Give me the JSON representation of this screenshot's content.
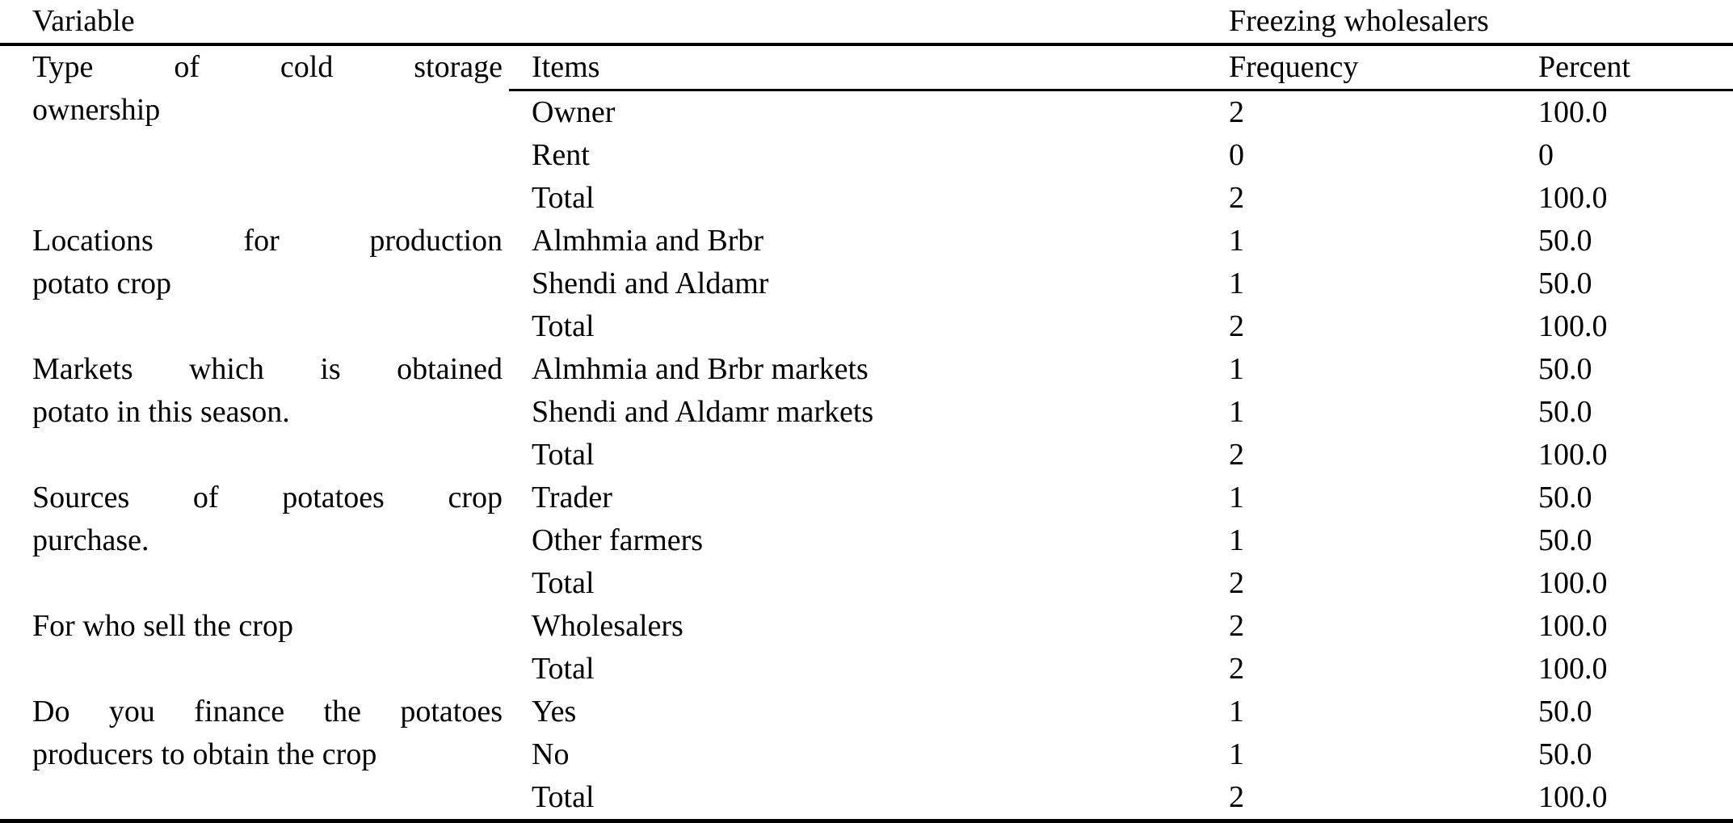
{
  "page": {
    "background_color": "#ffffff",
    "text_color": "#000000"
  },
  "table": {
    "top_header": {
      "variable": "Variable",
      "group": "Freezing wholesalers"
    },
    "columns": {
      "items": "Items",
      "frequency": "Frequency",
      "percent": "Percent"
    },
    "sections": [
      {
        "variable": "Type of cold storage ownership",
        "variable_lines": [
          "Type of cold storage",
          "ownership"
        ],
        "rows": [
          {
            "item": "Owner",
            "frequency": "2",
            "percent": "100.0"
          },
          {
            "item": "Rent",
            "frequency": "0",
            "percent": "0"
          },
          {
            "item": "Total",
            "frequency": "2",
            "percent": "100.0"
          }
        ]
      },
      {
        "variable": "Locations for production potato crop",
        "variable_lines": [
          "Locations for production",
          "potato crop"
        ],
        "rows": [
          {
            "item": "Almhmia and Brbr",
            "frequency": "1",
            "percent": "50.0"
          },
          {
            "item": "Shendi and Aldamr",
            "frequency": "1",
            "percent": "50.0"
          },
          {
            "item": "Total",
            "frequency": "2",
            "percent": "100.0"
          }
        ]
      },
      {
        "variable": "Markets which is obtained potato in this season.",
        "variable_lines": [
          "Markets which is obtained",
          "potato in this season."
        ],
        "rows": [
          {
            "item": "Almhmia and Brbr markets",
            "frequency": "1",
            "percent": "50.0"
          },
          {
            "item": "Shendi and Aldamr markets",
            "frequency": "1",
            "percent": "50.0"
          },
          {
            "item": "Total",
            "frequency": "2",
            "percent": "100.0"
          }
        ]
      },
      {
        "variable": "Sources of potatoes crop purchase.",
        "variable_lines": [
          "Sources of potatoes crop",
          "purchase."
        ],
        "rows": [
          {
            "item": "Trader",
            "frequency": "1",
            "percent": "50.0"
          },
          {
            "item": "Other farmers",
            "frequency": "1",
            "percent": "50.0"
          },
          {
            "item": "Total",
            "frequency": "2",
            "percent": "100.0"
          }
        ]
      },
      {
        "variable": "For who sell the crop",
        "variable_lines": [
          "For who sell the crop"
        ],
        "rows": [
          {
            "item": "Wholesalers",
            "frequency": "2",
            "percent": "100.0"
          },
          {
            "item": "Total",
            "frequency": "2",
            "percent": "100.0"
          }
        ]
      },
      {
        "variable": "Do you finance the potatoes producers to obtain the crop",
        "variable_lines": [
          "Do you finance the potatoes",
          "producers to obtain the crop"
        ],
        "rows": [
          {
            "item": "Yes",
            "frequency": "1",
            "percent": "50.0"
          },
          {
            "item": "No",
            "frequency": "1",
            "percent": "50.0"
          },
          {
            "item": "Total",
            "frequency": "2",
            "percent": "100.0"
          }
        ]
      }
    ]
  }
}
